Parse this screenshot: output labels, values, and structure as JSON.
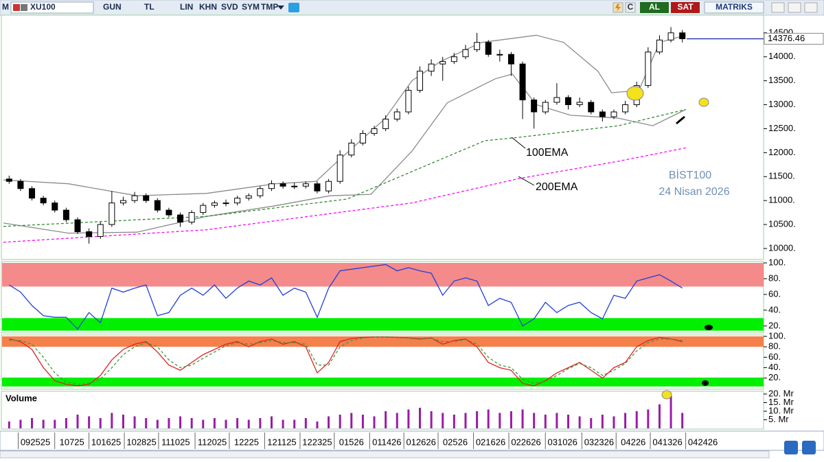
{
  "toolbar": {
    "menu": "M",
    "symbol": "XU100",
    "buttons": [
      "GUN",
      "TL",
      "LIN",
      "KHN",
      "SVD",
      "SYM",
      "TMP"
    ],
    "refresh": "C",
    "buy": "AL",
    "sell": "SAT",
    "brand": "MATRIKS"
  },
  "chart_data": [
    {
      "type": "candlestick",
      "x": [
        0,
        1,
        2,
        3,
        4,
        5,
        6,
        7,
        8,
        9,
        10,
        11,
        12,
        13,
        14,
        15,
        16,
        17,
        18,
        19,
        20,
        21,
        22,
        23,
        24,
        25,
        26,
        27,
        28,
        29,
        30,
        31,
        32,
        33,
        34,
        35,
        36,
        37,
        38,
        39,
        40,
        41,
        42,
        43,
        44,
        45,
        46,
        47,
        48,
        49,
        50,
        51,
        52,
        53,
        54,
        55,
        56,
        57,
        58,
        59
      ],
      "open": [
        11450,
        11400,
        11250,
        11050,
        10950,
        10800,
        10600,
        10350,
        10250,
        10500,
        10950,
        11000,
        11100,
        11000,
        10800,
        10700,
        10550,
        10750,
        10900,
        10950,
        10950,
        11050,
        11100,
        11250,
        11350,
        11300,
        11300,
        11350,
        11200,
        11400,
        11950,
        12200,
        12400,
        12500,
        12700,
        12850,
        13300,
        13700,
        13850,
        13900,
        14000,
        14150,
        14300,
        14050,
        14050,
        13850,
        13100,
        12850,
        13050,
        13150,
        13000,
        13050,
        12850,
        12750,
        12850,
        13000,
        13400,
        14100,
        14350,
        14500
      ],
      "high": [
        11520,
        11450,
        11300,
        11100,
        11000,
        10850,
        10650,
        10420,
        10550,
        11200,
        11080,
        11180,
        11150,
        11050,
        10850,
        10750,
        10800,
        10950,
        11000,
        11020,
        11100,
        11150,
        11300,
        11420,
        11400,
        11370,
        11400,
        11400,
        11450,
        12050,
        12280,
        12470,
        12560,
        12780,
        12920,
        13380,
        13800,
        13950,
        14000,
        14080,
        14250,
        14500,
        14350,
        14150,
        14100,
        13900,
        13150,
        13100,
        13450,
        13200,
        13150,
        13100,
        12900,
        12900,
        13080,
        13480,
        14200,
        14450,
        14620,
        14560
      ],
      "low": [
        11350,
        11200,
        11000,
        10900,
        10750,
        10550,
        10300,
        10100,
        10200,
        10450,
        10900,
        10950,
        10950,
        10750,
        10650,
        10450,
        10500,
        10700,
        10850,
        10880,
        10900,
        11000,
        11050,
        11200,
        11250,
        11240,
        11250,
        11150,
        11150,
        11350,
        11900,
        12150,
        12350,
        12450,
        12650,
        12800,
        13250,
        13600,
        13500,
        13850,
        13950,
        14100,
        14000,
        13900,
        13600,
        12700,
        12500,
        12800,
        13000,
        12900,
        12950,
        12800,
        12650,
        12700,
        12800,
        12950,
        13350,
        14050,
        14300,
        14300
      ],
      "close": [
        11400,
        11250,
        11050,
        10950,
        10800,
        10600,
        10350,
        10250,
        10500,
        10950,
        11000,
        11100,
        11000,
        10800,
        10700,
        10550,
        10750,
        10900,
        10950,
        10950,
        11050,
        11100,
        11250,
        11350,
        11300,
        11300,
        11350,
        11200,
        11400,
        11950,
        12200,
        12400,
        12500,
        12700,
        12850,
        13300,
        13700,
        13850,
        13900,
        14000,
        14150,
        14300,
        14050,
        14050,
        13850,
        13100,
        12850,
        13050,
        13150,
        13000,
        13050,
        12850,
        12750,
        12850,
        13000,
        13400,
        14100,
        14350,
        14500,
        14376.46
      ],
      "overlays": [
        {
          "color": "#8a8a8a",
          "dashed": false,
          "x": [
            -0.5,
            5.2,
            11.2,
            17.3,
            23.3,
            26.9,
            28.7,
            32.9,
            35.3,
            37.8,
            41.4,
            46.2,
            48.6,
            51.6,
            52.8,
            55.2,
            57,
            59.3
          ],
          "values": [
            11430,
            11350,
            11100,
            11150,
            11350,
            11400,
            11800,
            12700,
            13500,
            13900,
            14300,
            14450,
            14300,
            13700,
            13250,
            13300,
            14300,
            14450
          ]
        },
        {
          "color": "#8a8a8a",
          "dashed": false,
          "x": [
            -0.5,
            5.2,
            11.2,
            17.3,
            23.3,
            28.1,
            31.7,
            35.3,
            38.4,
            42.6,
            44.1,
            46.2,
            49.2,
            53.4,
            56.4,
            59.3
          ],
          "values": [
            10530,
            10320,
            10340,
            10670,
            10890,
            11100,
            11130,
            12030,
            13040,
            13540,
            13640,
            13000,
            12780,
            12720,
            12560,
            12900
          ]
        },
        {
          "color": "#2e8b2e",
          "dashed": true,
          "x": [
            -0.5,
            17.3,
            29.6,
            41.7,
            44.7,
            53.4,
            59.3
          ],
          "values": [
            10460,
            10670,
            11030,
            12250,
            12320,
            12560,
            12900
          ]
        },
        {
          "color": "#ff00ff",
          "dashed": true,
          "x": [
            -0.5,
            17.3,
            35.3,
            44.7,
            53.4,
            59.3
          ],
          "values": [
            10130,
            10390,
            10950,
            11460,
            11820,
            12100
          ]
        }
      ],
      "last_value": 14376.46,
      "annotations": [
        "100EMA",
        "200EMA",
        "BİST100",
        "24 Nisan 2026"
      ],
      "xlim": [
        -0.5,
        66
      ],
      "ylim": [
        9770,
        14870
      ],
      "yticks": [
        {
          "value": 10000,
          "label": "10000."
        },
        {
          "value": 10500,
          "label": "10500."
        },
        {
          "value": 11000,
          "label": "11000."
        },
        {
          "value": 11500,
          "label": "11500."
        },
        {
          "value": 12000,
          "label": "12000."
        },
        {
          "value": 12500,
          "label": "12500."
        },
        {
          "value": 13000,
          "label": "13000."
        },
        {
          "value": 13500,
          "label": "13500."
        },
        {
          "value": 14000,
          "label": "14000."
        },
        {
          "value": 14500,
          "label": "14500."
        }
      ]
    },
    {
      "type": "line",
      "x": [
        0,
        1,
        2,
        3,
        4,
        5,
        6,
        7,
        8,
        9,
        10,
        11,
        12,
        13,
        14,
        15,
        16,
        17,
        18,
        19,
        20,
        21,
        22,
        23,
        24,
        25,
        26,
        27,
        28,
        29,
        30,
        31,
        32,
        33,
        34,
        35,
        36,
        37,
        38,
        39,
        40,
        41,
        42,
        43,
        44,
        45,
        46,
        47,
        48,
        49,
        50,
        51,
        52,
        53,
        54,
        55,
        56,
        57,
        58,
        59
      ],
      "series": [
        {
          "color": "#1f3fd8",
          "dashed": false,
          "values": [
            72,
            63,
            46,
            33,
            31,
            31,
            16,
            37,
            24,
            68,
            63,
            68,
            72,
            33,
            37,
            59,
            68,
            59,
            72,
            55,
            68,
            77,
            72,
            81,
            59,
            68,
            63,
            31,
            68,
            90,
            92,
            94,
            96,
            98,
            90,
            94,
            90,
            87,
            59,
            77,
            81,
            77,
            46,
            55,
            50,
            20,
            29,
            50,
            37,
            46,
            50,
            37,
            29,
            59,
            55,
            77,
            81,
            85,
            77,
            68
          ]
        }
      ],
      "zones": [
        {
          "from": 70,
          "to": 100,
          "color": "#f48a8a"
        },
        {
          "from": 14,
          "to": 30,
          "color": "#00f000"
        }
      ],
      "xlim": [
        -0.5,
        66
      ],
      "ylim": [
        12,
        100
      ],
      "yticks": [
        {
          "value": 20,
          "label": "20."
        },
        {
          "value": 40,
          "label": "40."
        },
        {
          "value": 60,
          "label": "60."
        },
        {
          "value": 80,
          "label": "80."
        },
        {
          "value": 100,
          "label": "100."
        }
      ]
    },
    {
      "type": "line",
      "x": [
        0,
        1,
        2,
        3,
        4,
        5,
        6,
        7,
        8,
        9,
        10,
        11,
        12,
        13,
        14,
        15,
        16,
        17,
        18,
        19,
        20,
        21,
        22,
        23,
        24,
        25,
        26,
        27,
        28,
        29,
        30,
        31,
        32,
        33,
        34,
        35,
        36,
        37,
        38,
        39,
        40,
        41,
        42,
        43,
        44,
        45,
        46,
        47,
        48,
        49,
        50,
        51,
        52,
        53,
        54,
        55,
        56,
        57,
        58,
        59
      ],
      "series": [
        {
          "color": "#e02020",
          "dashed": false,
          "values": [
            95,
            90,
            75,
            40,
            15,
            8,
            5,
            8,
            25,
            55,
            75,
            85,
            90,
            70,
            45,
            35,
            50,
            65,
            75,
            85,
            90,
            80,
            90,
            95,
            85,
            90,
            80,
            30,
            50,
            90,
            96,
            98,
            99,
            99,
            98,
            97,
            95,
            97,
            85,
            92,
            95,
            80,
            50,
            40,
            35,
            10,
            5,
            15,
            30,
            40,
            50,
            35,
            20,
            40,
            50,
            80,
            92,
            98,
            95,
            90
          ]
        },
        {
          "color": "#3a9a3a",
          "dashed": true,
          "values": [
            93,
            92,
            85,
            60,
            30,
            12,
            8,
            10,
            18,
            40,
            65,
            80,
            88,
            80,
            55,
            40,
            45,
            58,
            70,
            82,
            88,
            85,
            88,
            92,
            88,
            88,
            85,
            45,
            45,
            80,
            92,
            97,
            99,
            99,
            98,
            97,
            96,
            96,
            90,
            90,
            94,
            85,
            60,
            45,
            40,
            18,
            10,
            14,
            25,
            38,
            48,
            40,
            25,
            35,
            48,
            72,
            88,
            95,
            95,
            92
          ]
        }
      ],
      "zones": [
        {
          "from": 80,
          "to": 100,
          "color": "#f4804c"
        },
        {
          "from": 4,
          "to": 21,
          "color": "#00f000"
        }
      ],
      "xlim": [
        -0.5,
        66
      ],
      "ylim": [
        0,
        100
      ],
      "yticks": [
        {
          "value": 20,
          "label": "20."
        },
        {
          "value": 40,
          "label": "40."
        },
        {
          "value": 60,
          "label": "60."
        },
        {
          "value": 80,
          "label": "80."
        },
        {
          "value": 100,
          "label": "100."
        }
      ]
    },
    {
      "type": "bar",
      "title": "Volume",
      "x": [
        0,
        1,
        2,
        3,
        4,
        5,
        6,
        7,
        8,
        9,
        10,
        11,
        12,
        13,
        14,
        15,
        16,
        17,
        18,
        19,
        20,
        21,
        22,
        23,
        24,
        25,
        26,
        27,
        28,
        29,
        30,
        31,
        32,
        33,
        34,
        35,
        36,
        37,
        38,
        39,
        40,
        41,
        42,
        43,
        44,
        45,
        46,
        47,
        48,
        49,
        50,
        51,
        52,
        53,
        54,
        55,
        56,
        57,
        58,
        59
      ],
      "values": [
        4,
        5,
        6,
        5,
        5,
        6,
        8,
        7,
        6,
        9,
        8,
        7,
        6,
        5,
        6,
        7,
        6,
        5,
        6,
        5,
        6,
        5,
        6,
        7,
        5,
        5,
        6,
        4,
        7,
        8,
        9,
        8,
        7,
        10,
        9,
        11,
        12,
        10,
        9,
        8,
        9,
        10,
        11,
        9,
        10,
        11,
        9,
        8,
        9,
        8,
        7,
        6,
        8,
        7,
        9,
        10,
        11,
        14,
        19,
        9
      ],
      "color": "#9a1aa8",
      "xlim": [
        -0.5,
        66
      ],
      "ylim": [
        0,
        20.8
      ],
      "yticks": [
        {
          "value": 5,
          "label": "5. Mr"
        },
        {
          "value": 10,
          "label": "10. Mr"
        },
        {
          "value": 15,
          "label": "15. Mr"
        },
        {
          "value": 20,
          "label": "20. Mr"
        }
      ],
      "xticks": [
        {
          "value": 2.3,
          "label": "092525"
        },
        {
          "value": 5.5,
          "label": "10725"
        },
        {
          "value": 8.5,
          "label": "101625"
        },
        {
          "value": 11.6,
          "label": "102825"
        },
        {
          "value": 14.6,
          "label": "111025"
        },
        {
          "value": 17.8,
          "label": "112025"
        },
        {
          "value": 20.8,
          "label": "12225"
        },
        {
          "value": 23.9,
          "label": "121125"
        },
        {
          "value": 27,
          "label": "122325"
        },
        {
          "value": 30,
          "label": "01526"
        },
        {
          "value": 33.1,
          "label": "011426"
        },
        {
          "value": 36.1,
          "label": "012626"
        },
        {
          "value": 39.1,
          "label": "02526"
        },
        {
          "value": 42.2,
          "label": "021626"
        },
        {
          "value": 45.3,
          "label": "022626"
        },
        {
          "value": 48.5,
          "label": "031026"
        },
        {
          "value": 51.7,
          "label": "032326"
        },
        {
          "value": 54.7,
          "label": "04226"
        },
        {
          "value": 57.7,
          "label": "041326"
        },
        {
          "value": 60.8,
          "label": "042426"
        }
      ]
    }
  ]
}
